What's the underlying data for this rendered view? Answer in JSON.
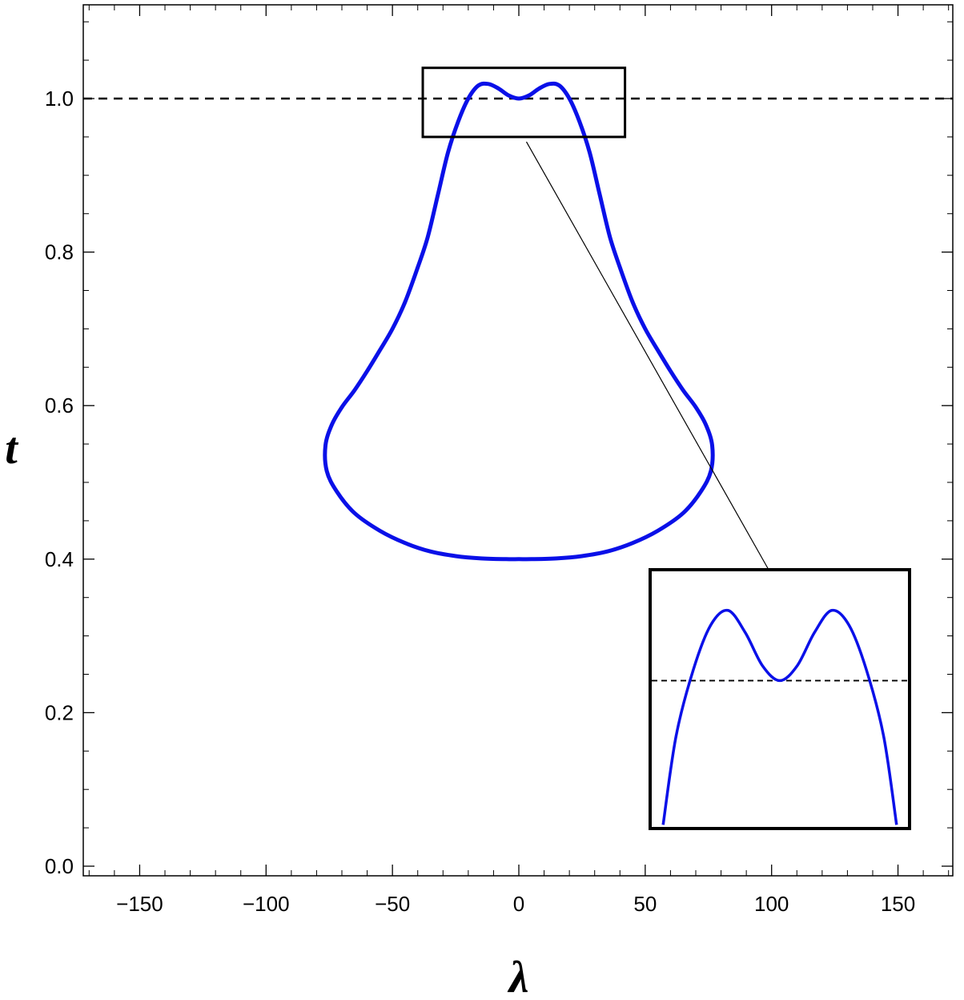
{
  "chart_data": {
    "type": "line",
    "xlabel": "λ",
    "ylabel": "t",
    "xlim": [
      -172,
      172
    ],
    "ylim": [
      -0.02,
      1.12
    ],
    "x_ticks": [
      {
        "value": -150,
        "label": "−150"
      },
      {
        "value": -100,
        "label": "−100"
      },
      {
        "value": -50,
        "label": "−50"
      },
      {
        "value": 0,
        "label": "0"
      },
      {
        "value": 50,
        "label": "50"
      },
      {
        "value": 100,
        "label": "100"
      },
      {
        "value": 150,
        "label": "150"
      }
    ],
    "y_ticks": [
      {
        "value": 0.0,
        "label": "0.0"
      },
      {
        "value": 0.2,
        "label": "0.2"
      },
      {
        "value": 0.4,
        "label": "0.4"
      },
      {
        "value": 0.6,
        "label": "0.6"
      },
      {
        "value": 0.8,
        "label": "0.8"
      },
      {
        "value": 1.0,
        "label": "1.0"
      }
    ],
    "reference_line": {
      "y": 1.0,
      "style": "dashed",
      "color": "#000000"
    },
    "series": [
      {
        "color": "#0a10e8",
        "closed": true,
        "points": [
          [
            0,
            1.0
          ],
          [
            4,
            1.004
          ],
          [
            8,
            1.013
          ],
          [
            12,
            1.019
          ],
          [
            16,
            1.017
          ],
          [
            20,
            1.0
          ],
          [
            24,
            0.97
          ],
          [
            28,
            0.93
          ],
          [
            32,
            0.875
          ],
          [
            36,
            0.82
          ],
          [
            40,
            0.78
          ],
          [
            45,
            0.735
          ],
          [
            50,
            0.7
          ],
          [
            55,
            0.672
          ],
          [
            60,
            0.645
          ],
          [
            65,
            0.62
          ],
          [
            70,
            0.598
          ],
          [
            74,
            0.575
          ],
          [
            76.5,
            0.548
          ],
          [
            76,
            0.515
          ],
          [
            72,
            0.488
          ],
          [
            65,
            0.46
          ],
          [
            55,
            0.437
          ],
          [
            45,
            0.421
          ],
          [
            35,
            0.41
          ],
          [
            25,
            0.404
          ],
          [
            15,
            0.401
          ],
          [
            5,
            0.4
          ],
          [
            0,
            0.4
          ],
          [
            -5,
            0.4
          ],
          [
            -15,
            0.401
          ],
          [
            -25,
            0.404
          ],
          [
            -35,
            0.41
          ],
          [
            -45,
            0.421
          ],
          [
            -55,
            0.437
          ],
          [
            -65,
            0.46
          ],
          [
            -72,
            0.488
          ],
          [
            -76,
            0.515
          ],
          [
            -76.5,
            0.548
          ],
          [
            -74,
            0.575
          ],
          [
            -70,
            0.598
          ],
          [
            -65,
            0.62
          ],
          [
            -60,
            0.645
          ],
          [
            -55,
            0.672
          ],
          [
            -50,
            0.7
          ],
          [
            -45,
            0.735
          ],
          [
            -40,
            0.78
          ],
          [
            -36,
            0.82
          ],
          [
            -32,
            0.875
          ],
          [
            -28,
            0.93
          ],
          [
            -24,
            0.97
          ],
          [
            -20,
            1.0
          ],
          [
            -16,
            1.017
          ],
          [
            -12,
            1.019
          ],
          [
            -8,
            1.013
          ],
          [
            -4,
            1.004
          ],
          [
            0,
            1.0
          ]
        ]
      }
    ],
    "zoom_region": {
      "xlim": [
        -38,
        42
      ],
      "ylim": [
        0.95,
        1.04
      ]
    },
    "inset": {
      "description_free": true,
      "xlim": [
        -30,
        30
      ],
      "ylim": [
        0.96,
        1.03
      ],
      "reference_line_y": 1.0,
      "points": [
        [
          -27,
          0.961
        ],
        [
          -24,
          0.985
        ],
        [
          -20,
          1.003
        ],
        [
          -16,
          1.015
        ],
        [
          -12,
          1.019
        ],
        [
          -8,
          1.013
        ],
        [
          -4,
          1.004
        ],
        [
          0,
          1.0
        ],
        [
          4,
          1.004
        ],
        [
          8,
          1.013
        ],
        [
          12,
          1.019
        ],
        [
          16,
          1.015
        ],
        [
          20,
          1.003
        ],
        [
          24,
          0.985
        ],
        [
          27,
          0.961
        ]
      ]
    },
    "grid": false,
    "legend": "none"
  }
}
